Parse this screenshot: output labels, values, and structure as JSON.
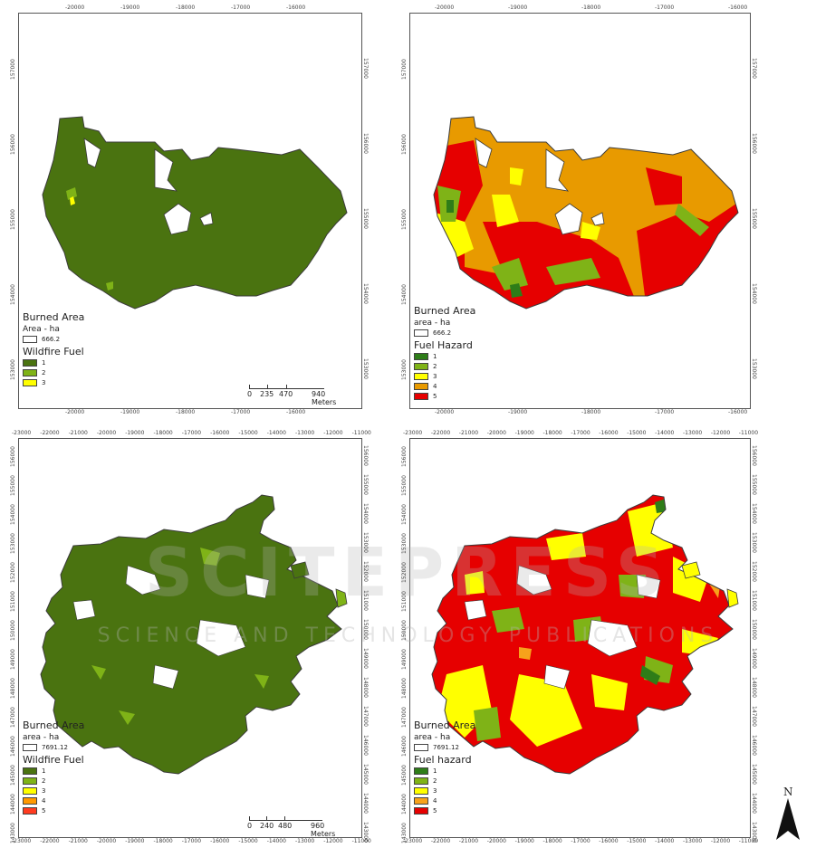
{
  "panels": [
    {
      "id": "top-left",
      "x_ticks": [
        "-20000",
        "-19000",
        "-18000",
        "-17000",
        "-16000"
      ],
      "y_ticks": [
        "157000",
        "156000",
        "155000",
        "154000",
        "153000"
      ],
      "legend": {
        "burned_title": "Burned Area",
        "area_label": "Area - ha",
        "area_value": "666.2",
        "class_title": "Wildfire Fuel",
        "classes": [
          {
            "label": "1",
            "color": "#4a7310"
          },
          {
            "label": "2",
            "color": "#7fb317"
          },
          {
            "label": "3",
            "color": "#ffff00"
          }
        ]
      },
      "scalebar": {
        "labels": [
          "0",
          "235",
          "470",
          "940 Meters"
        ]
      }
    },
    {
      "id": "top-right",
      "x_ticks": [
        "-20000",
        "-19000",
        "-18000",
        "-17000",
        "-16000"
      ],
      "y_ticks": [
        "157000",
        "156000",
        "155000",
        "154000",
        "153000"
      ],
      "legend": {
        "burned_title": "Burned Area",
        "area_label": "area - ha",
        "area_value": "666.2",
        "class_title": "Fuel Hazard",
        "classes": [
          {
            "label": "1",
            "color": "#2e7d18"
          },
          {
            "label": "2",
            "color": "#7fb317"
          },
          {
            "label": "3",
            "color": "#ffff00"
          },
          {
            "label": "4",
            "color": "#e89a00"
          },
          {
            "label": "5",
            "color": "#e60000"
          }
        ]
      }
    },
    {
      "id": "bottom-left",
      "x_ticks": [
        "-23000",
        "-22000",
        "-21000",
        "-20000",
        "-19000",
        "-18000",
        "-17000",
        "-16000",
        "-15000",
        "-14000",
        "-13000",
        "-12000",
        "-11000"
      ],
      "y_ticks": [
        "156000",
        "155000",
        "154000",
        "153000",
        "152000",
        "151000",
        "150000",
        "149000",
        "148000",
        "147000",
        "146000",
        "145000",
        "144000",
        "143000"
      ],
      "legend": {
        "burned_title": "Burned Area",
        "area_label": "area - ha",
        "area_value": "7691.12",
        "class_title": "Wildfire Fuel",
        "classes": [
          {
            "label": "1",
            "color": "#4a7310"
          },
          {
            "label": "2",
            "color": "#7fb317"
          },
          {
            "label": "3",
            "color": "#ffff00"
          },
          {
            "label": "4",
            "color": "#ff9900"
          },
          {
            "label": "5",
            "color": "#ff3b1f"
          }
        ]
      },
      "scalebar": {
        "labels": [
          "0",
          "240",
          "480",
          "960 Meters"
        ]
      }
    },
    {
      "id": "bottom-right",
      "x_ticks": [
        "-23000",
        "-22000",
        "-21000",
        "-20000",
        "-19000",
        "-18000",
        "-17000",
        "-16000",
        "-15000",
        "-14000",
        "-13000",
        "-12000",
        "-11000"
      ],
      "y_ticks": [
        "156000",
        "155000",
        "154000",
        "153000",
        "152000",
        "151000",
        "150000",
        "149000",
        "148000",
        "147000",
        "146000",
        "145000",
        "144000",
        "143000"
      ],
      "legend": {
        "burned_title": "Burned Area",
        "area_label": "area - ha",
        "area_value": "7691.12",
        "class_title": "Fuel hazard",
        "classes": [
          {
            "label": "1",
            "color": "#2e7d18"
          },
          {
            "label": "2",
            "color": "#7fb317"
          },
          {
            "label": "3",
            "color": "#ffff00"
          },
          {
            "label": "4",
            "color": "#f7a21b"
          },
          {
            "label": "5",
            "color": "#e60000"
          }
        ]
      }
    }
  ],
  "north_arrow": {
    "label": "N"
  },
  "watermark": {
    "main": "SCITEPRESS",
    "sub": "SCIENCE AND TECHNOLOGY PUBLICATIONS"
  }
}
